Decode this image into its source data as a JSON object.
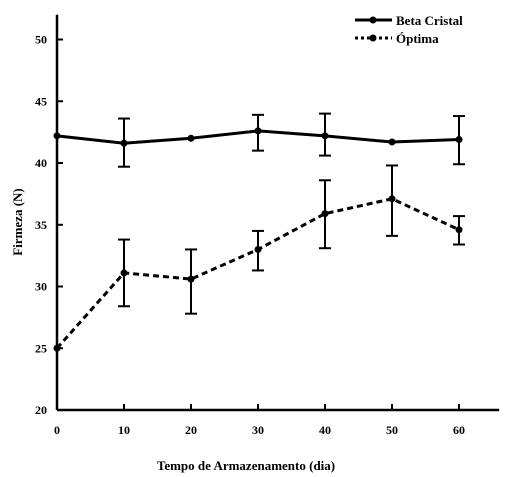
{
  "chart_data": {
    "type": "line",
    "title": "",
    "xlabel": "Tempo de Armazenamento (dia)",
    "ylabel": "Firmeza (N)",
    "xlim": [
      0,
      66
    ],
    "ylim": [
      20,
      52
    ],
    "x_ticks": [
      0,
      10,
      20,
      30,
      40,
      50,
      60
    ],
    "y_ticks": [
      20,
      25,
      30,
      35,
      40,
      45,
      50
    ],
    "x": [
      0,
      10,
      20,
      30,
      40,
      50,
      60
    ],
    "grid": false,
    "legend_position": "top-right",
    "series": [
      {
        "name": "Beta Cristal",
        "style": "solid",
        "color": "#000000",
        "values": [
          42.2,
          41.6,
          42.0,
          42.6,
          42.2,
          41.7,
          41.9
        ],
        "err_low": [
          null,
          39.7,
          null,
          41.0,
          40.6,
          null,
          39.9
        ],
        "err_high": [
          null,
          43.6,
          null,
          43.9,
          44.0,
          null,
          43.8
        ]
      },
      {
        "name": "Óptima",
        "style": "dashed",
        "color": "#000000",
        "values": [
          25.0,
          31.1,
          30.6,
          33.0,
          35.9,
          37.1,
          34.6
        ],
        "err_low": [
          null,
          28.4,
          27.8,
          31.3,
          33.1,
          34.1,
          33.4
        ],
        "err_high": [
          null,
          33.8,
          33.0,
          34.5,
          38.6,
          39.8,
          35.7
        ]
      }
    ]
  }
}
